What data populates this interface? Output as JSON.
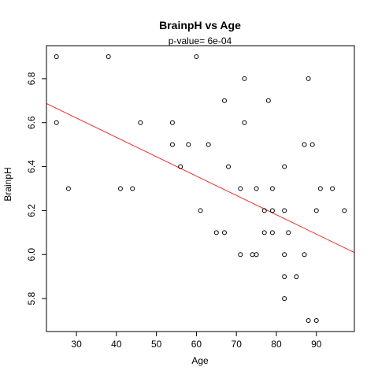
{
  "chart_data": {
    "type": "scatter",
    "title": "BrainpH  vs  Age",
    "subtitle": "p-value= 6e-04",
    "xlabel": "Age",
    "ylabel": "BrainpH",
    "xlim": [
      22.5,
      99.5
    ],
    "ylim": [
      5.65,
      6.95
    ],
    "x_ticks": [
      30,
      40,
      50,
      60,
      70,
      80,
      90
    ],
    "y_ticks": [
      5.8,
      6.0,
      6.2,
      6.4,
      6.6,
      6.8
    ],
    "x_tick_labels": [
      "30",
      "40",
      "50",
      "60",
      "70",
      "80",
      "90"
    ],
    "y_tick_labels": [
      "5.8",
      "6.0",
      "6.2",
      "6.4",
      "6.6",
      "6.8"
    ],
    "grid": false,
    "point_color": "#000000",
    "fit_line": {
      "color": "#e8312f",
      "intercept": 6.885,
      "slope": -0.0088
    },
    "points": [
      {
        "x": 25,
        "y": 6.9
      },
      {
        "x": 25,
        "y": 6.6
      },
      {
        "x": 28,
        "y": 6.3
      },
      {
        "x": 38,
        "y": 6.9
      },
      {
        "x": 41,
        "y": 6.3
      },
      {
        "x": 44,
        "y": 6.3
      },
      {
        "x": 46,
        "y": 6.6
      },
      {
        "x": 54,
        "y": 6.6
      },
      {
        "x": 54,
        "y": 6.5
      },
      {
        "x": 56,
        "y": 6.4
      },
      {
        "x": 58,
        "y": 6.5
      },
      {
        "x": 60,
        "y": 6.9
      },
      {
        "x": 61,
        "y": 6.2
      },
      {
        "x": 63,
        "y": 6.5
      },
      {
        "x": 65,
        "y": 6.1
      },
      {
        "x": 67,
        "y": 6.1
      },
      {
        "x": 67,
        "y": 6.7
      },
      {
        "x": 68,
        "y": 6.4
      },
      {
        "x": 71,
        "y": 6.3
      },
      {
        "x": 71,
        "y": 6.0
      },
      {
        "x": 72,
        "y": 6.8
      },
      {
        "x": 72,
        "y": 6.6
      },
      {
        "x": 74,
        "y": 6.0
      },
      {
        "x": 75,
        "y": 6.0
      },
      {
        "x": 75,
        "y": 6.3
      },
      {
        "x": 77,
        "y": 6.2
      },
      {
        "x": 77,
        "y": 6.1
      },
      {
        "x": 78,
        "y": 6.7
      },
      {
        "x": 79,
        "y": 6.3
      },
      {
        "x": 79,
        "y": 6.2
      },
      {
        "x": 79,
        "y": 6.1
      },
      {
        "x": 82,
        "y": 6.4
      },
      {
        "x": 82,
        "y": 6.2
      },
      {
        "x": 82,
        "y": 6.0
      },
      {
        "x": 82,
        "y": 5.9
      },
      {
        "x": 82,
        "y": 5.8
      },
      {
        "x": 83,
        "y": 6.1
      },
      {
        "x": 85,
        "y": 5.9
      },
      {
        "x": 87,
        "y": 6.5
      },
      {
        "x": 87,
        "y": 6.0
      },
      {
        "x": 88,
        "y": 6.8
      },
      {
        "x": 88,
        "y": 5.7
      },
      {
        "x": 89,
        "y": 6.5
      },
      {
        "x": 90,
        "y": 6.2
      },
      {
        "x": 90,
        "y": 5.7
      },
      {
        "x": 91,
        "y": 6.3
      },
      {
        "x": 94,
        "y": 6.3
      },
      {
        "x": 97,
        "y": 6.2
      }
    ]
  }
}
